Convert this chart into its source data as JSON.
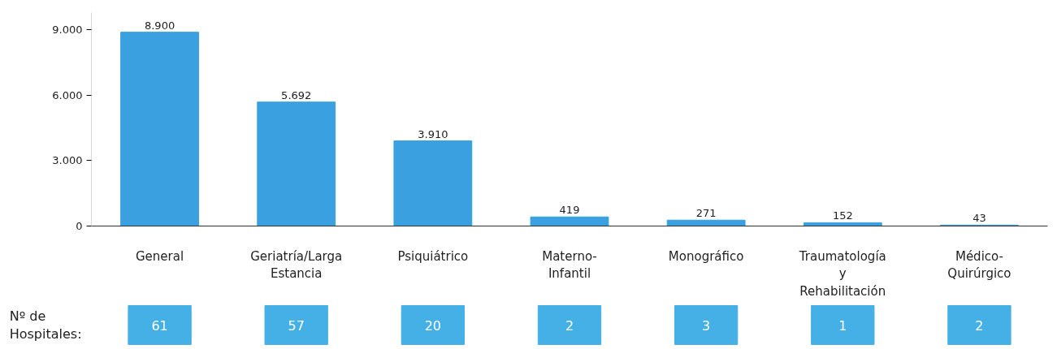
{
  "chart_data": {
    "type": "bar",
    "categories": [
      "General",
      "Geriatría/Larga Estancia",
      "Psiquiátrico",
      "Materno-Infantil",
      "Monográfico",
      "Traumatología y Rehabilitación",
      "Médico-Quirúrgico"
    ],
    "values": [
      8900,
      5692,
      3910,
      419,
      271,
      152,
      43
    ],
    "color": "#3aa0df",
    "ylim": [
      0,
      9800
    ],
    "yticks": [
      {
        "value": 0,
        "label": "0"
      },
      {
        "value": 3000,
        "label": "3.000"
      },
      {
        "value": 6000,
        "label": "6.000"
      },
      {
        "value": 9000,
        "label": "9.000"
      }
    ],
    "value_labels": [
      "8.900",
      "5.692",
      "3.910",
      "419",
      "271",
      "152",
      "43"
    ],
    "grid": false,
    "annotations": [
      "Nº de Hospitales:",
      "61",
      "57",
      "20",
      "2",
      "3",
      "1",
      "2"
    ]
  }
}
